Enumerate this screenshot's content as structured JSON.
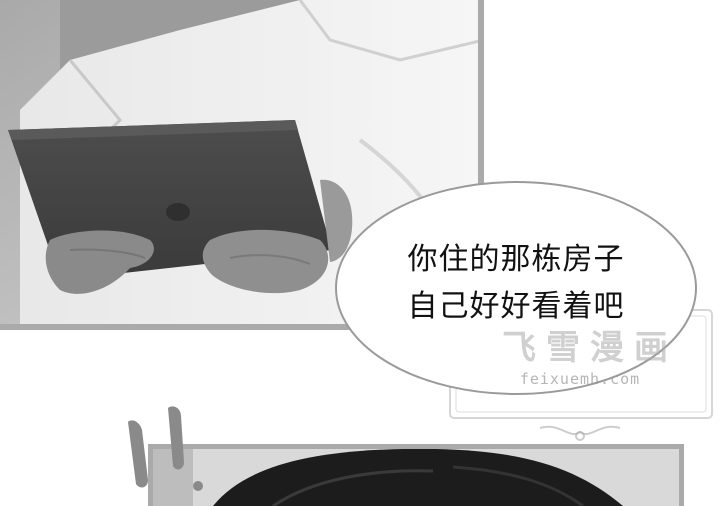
{
  "speech_bubble": {
    "line1": "你住的那栋房子",
    "line2": "自己好好看着吧"
  },
  "watermark": {
    "title": "飞雪漫画",
    "url": "feixuemh.com"
  },
  "colors": {
    "panel_border": "#aaaaaa",
    "bubble_stroke": "#9a9a9a",
    "text": "#111111"
  }
}
